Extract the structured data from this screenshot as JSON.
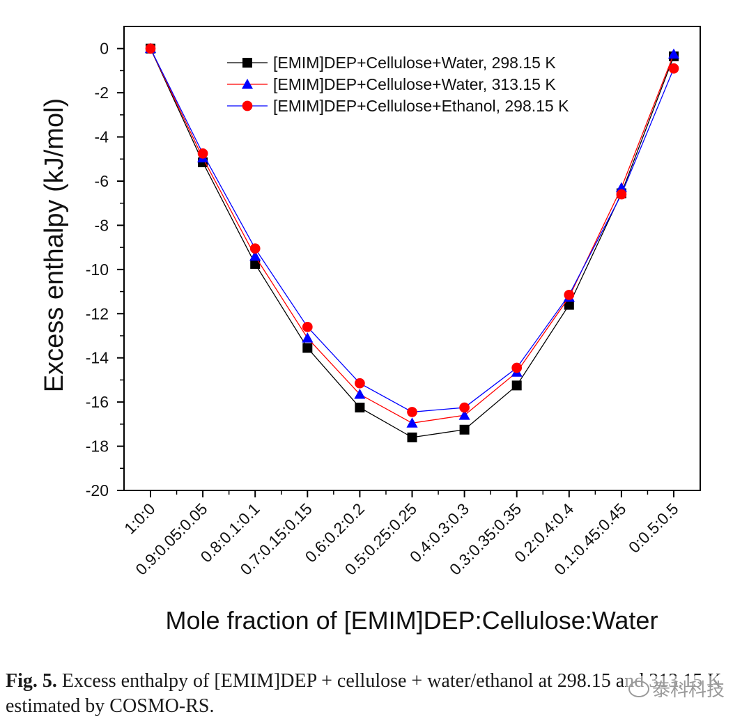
{
  "chart_data": {
    "type": "line",
    "xlabel": "Mole fraction of [EMIM]DEP:Cellulose:Water",
    "ylabel": "Excess enthalpy (kJ/mol)",
    "categories": [
      "1:0:0",
      "0.9:0.05:0.05",
      "0.8:0.1:0.1",
      "0.7:0.15:0.15",
      "0.6:0.2:0.2",
      "0.5:0.25:0.25",
      "0.4:0.3:0.3",
      "0.3:0.35:0.35",
      "0.2:0.4:0.4",
      "0.1:0.45:0.45",
      "0:0.5:0.5"
    ],
    "ylim": [
      -20,
      1
    ],
    "yticks": [
      0,
      -2,
      -4,
      -6,
      -8,
      -10,
      -12,
      -14,
      -16,
      -18,
      -20
    ],
    "ytick_labels": [
      "0",
      "-2",
      "-4",
      "-6",
      "-8",
      "-10",
      "-12",
      "-14",
      "-16",
      "-18",
      "-20"
    ],
    "grid": false,
    "legend_position": "top-center",
    "series": [
      {
        "name": "[EMIM]DEP+Cellulose+Water, 298.15 K",
        "marker": "square",
        "marker_color": "#000000",
        "line_color": "#000000",
        "values": [
          0,
          -5.15,
          -9.75,
          -13.55,
          -16.25,
          -17.6,
          -17.25,
          -15.25,
          -11.6,
          -6.55,
          -0.35
        ]
      },
      {
        "name": "[EMIM]DEP+Cellulose+Water, 313.15 K",
        "marker": "triangle",
        "marker_color": "#0000ff",
        "line_color": "#ff0000",
        "values": [
          0,
          -4.95,
          -9.4,
          -13.1,
          -15.65,
          -16.95,
          -16.6,
          -14.65,
          -11.25,
          -6.3,
          -0.25
        ]
      },
      {
        "name": "[EMIM]DEP+Cellulose+Ethanol, 298.15 K",
        "marker": "circle",
        "marker_color": "#ff0000",
        "line_color": "#0000ff",
        "values": [
          0,
          -4.75,
          -9.05,
          -12.6,
          -15.15,
          -16.45,
          -16.25,
          -14.45,
          -11.15,
          -6.6,
          -0.9
        ]
      }
    ]
  },
  "caption": {
    "label": "Fig. 5.",
    "text": " Excess enthalpy of [EMIM]DEP + cellulose + water/ethanol at 298.15 and 313.15 K estimated by COSMO-RS."
  },
  "watermark": {
    "text": "泰科科技",
    "icon": "wechat-icon"
  }
}
